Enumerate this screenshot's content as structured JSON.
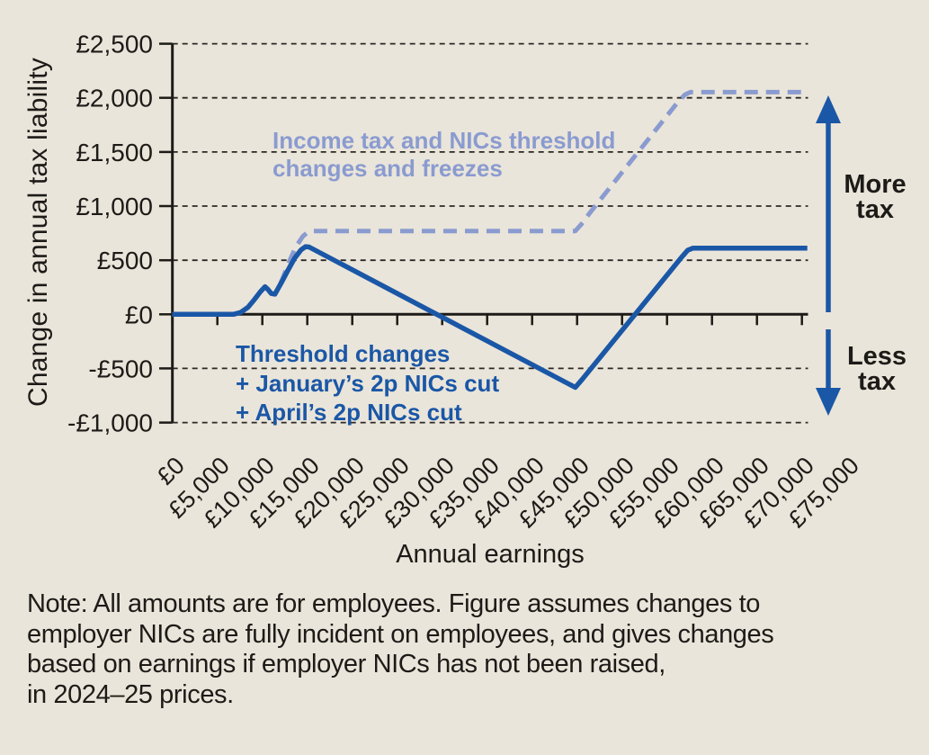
{
  "figure": {
    "background_color": "#eae5da",
    "text_color": "#1d1b18"
  },
  "chart_data": {
    "type": "line",
    "title": "",
    "xlabel": "Annual earnings",
    "ylabel": "Change in annual tax liability",
    "xlim": [
      0,
      75000
    ],
    "ylim": [
      -1000,
      2500
    ],
    "grid": "horizontal dashed lines at every £500 level except £0; solid black axis line at £0",
    "legend_position": "labels annotated directly on chart",
    "x_tick_values": [
      0,
      5000,
      10000,
      15000,
      20000,
      25000,
      30000,
      35000,
      40000,
      45000,
      50000,
      55000,
      60000,
      65000,
      70000,
      75000
    ],
    "x_tick_labels": [
      "£0",
      "£5,000",
      "£10,000",
      "£15,000",
      "£20,000",
      "£25,000",
      "£30,000",
      "£35,000",
      "£40,000",
      "£45,000",
      "£50,000",
      "£55,000",
      "£60,000",
      "£65,000",
      "£70,000",
      "£75,000"
    ],
    "y_tick_values": [
      2500,
      2000,
      1500,
      1000,
      500,
      0,
      -500,
      -1000
    ],
    "y_tick_labels": [
      "£2,500",
      "£2,000",
      "£1,500",
      "£1,000",
      "£500",
      "£0",
      "-£500",
      "-£1,000"
    ],
    "series": [
      {
        "name": "Income tax and NICs threshold changes and freezes",
        "style": "dashed",
        "color": "#8a9bd0",
        "points": [
          [
            0,
            0
          ],
          [
            6800,
            0
          ],
          [
            7600,
            18
          ],
          [
            8400,
            65
          ],
          [
            9100,
            135
          ],
          [
            9800,
            210
          ],
          [
            10300,
            255
          ],
          [
            10600,
            232
          ],
          [
            11000,
            192
          ],
          [
            11400,
            186
          ],
          [
            12200,
            320
          ],
          [
            12900,
            470
          ],
          [
            13700,
            620
          ],
          [
            14500,
            720
          ],
          [
            15100,
            762
          ],
          [
            15500,
            770
          ],
          [
            44800,
            770
          ],
          [
            45500,
            835
          ],
          [
            46400,
            935
          ],
          [
            56200,
            1960
          ],
          [
            57000,
            2030
          ],
          [
            57600,
            2053
          ],
          [
            70600,
            2053
          ]
        ]
      },
      {
        "name": "Threshold changes + January’s 2p NICs cut + April’s 2p NICs cut",
        "style": "solid",
        "color": "#1a57a6",
        "points": [
          [
            0,
            0
          ],
          [
            6800,
            0
          ],
          [
            7600,
            18
          ],
          [
            8400,
            65
          ],
          [
            9100,
            135
          ],
          [
            9800,
            210
          ],
          [
            10300,
            255
          ],
          [
            10600,
            232
          ],
          [
            11000,
            192
          ],
          [
            11400,
            186
          ],
          [
            12100,
            290
          ],
          [
            12800,
            400
          ],
          [
            13600,
            520
          ],
          [
            14300,
            595
          ],
          [
            14800,
            625
          ],
          [
            15200,
            622
          ],
          [
            44800,
            -675
          ],
          [
            45600,
            -598
          ],
          [
            56600,
            525
          ],
          [
            57300,
            592
          ],
          [
            57900,
            612
          ],
          [
            70600,
            612
          ]
        ]
      }
    ],
    "labels": {
      "series1": [
        "Income tax and NICs threshold",
        "changes and freezes"
      ],
      "series2": [
        "Threshold changes",
        "+ January’s 2p NICs cut",
        "+ April’s 2p NICs cut"
      ],
      "more_tax": [
        "More",
        "tax"
      ],
      "less_tax": [
        "Less",
        "tax"
      ]
    }
  },
  "note": {
    "lines": [
      "Note: All amounts are for employees. Figure assumes changes to",
      "employer NICs are fully incident on employees, and gives changes",
      "based on earnings if employer NICs has not been raised,",
      "in 2024–25 prices."
    ]
  }
}
